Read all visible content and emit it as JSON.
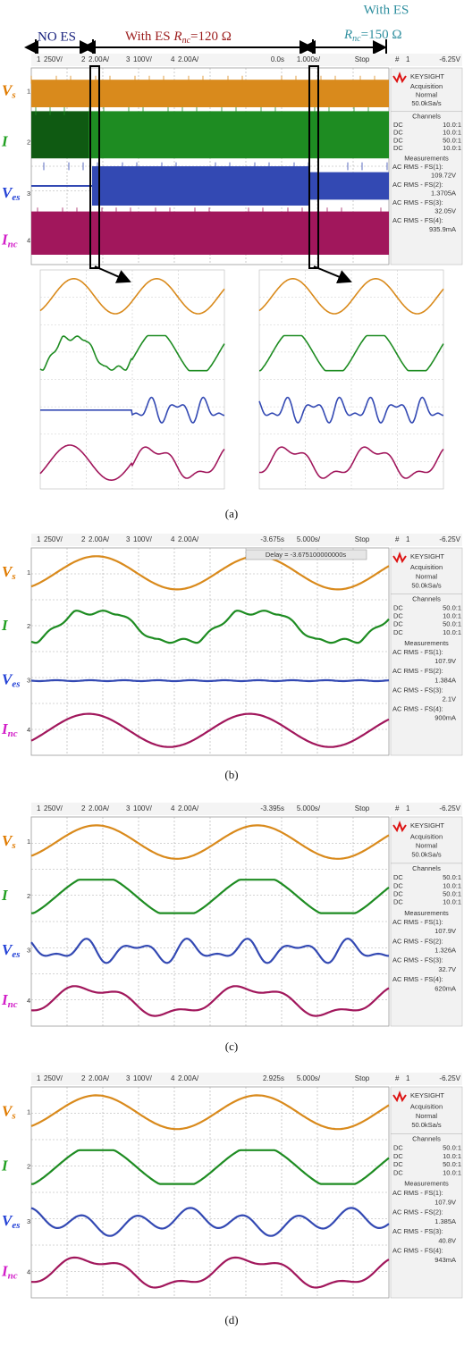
{
  "panel_a": {
    "top_labels": {
      "no_es": "NO ES",
      "with_es_120": {
        "prefix": "With ES ",
        "symbol": "R",
        "subscript": "nc",
        "suffix": "=120 Ω"
      },
      "with_es_150": {
        "line1": "With ES",
        "symbol": "R",
        "subscript": "nc",
        "suffix": "=150 Ω"
      }
    },
    "scope": {
      "channels": [
        {
          "num": "1",
          "scale": "250V/"
        },
        {
          "num": "2",
          "scale": "2.00A/"
        },
        {
          "num": "3",
          "scale": "100V/"
        },
        {
          "num": "4",
          "scale": "2.00A/"
        }
      ],
      "time_offset": "0.0s",
      "time_scale": "1.000s/",
      "status": "Stop",
      "trigger": {
        "mark": "#",
        "ch": "1",
        "level": "-6.25V"
      },
      "side": {
        "logo": "KEYSIGHT",
        "acquisition": "Acquisition",
        "mode": "Normal",
        "rate": "50.0kSa/s",
        "channels_title": "Channels",
        "channel_rows": [
          [
            "DC",
            "10.0:1"
          ],
          [
            "DC",
            "10.0:1"
          ],
          [
            "DC",
            "50.0:1"
          ],
          [
            "DC",
            "10.0:1"
          ]
        ],
        "measurements_title": "Measurements",
        "measurements": [
          {
            "label": "AC RMS - FS(1):",
            "value": "109.72V"
          },
          {
            "label": "AC RMS - FS(2):",
            "value": "1.3705A"
          },
          {
            "label": "AC RMS - FS(3):",
            "value": "32.05V"
          },
          {
            "label": "AC RMS - FS(4):",
            "value": "935.9mA"
          }
        ]
      },
      "signal_labels": [
        {
          "symbol": "V",
          "subscript": "s"
        },
        {
          "symbol": "I"
        },
        {
          "symbol": "V",
          "subscript": "es"
        },
        {
          "symbol": "I",
          "subscript": "nc"
        }
      ]
    },
    "caption": "(a)"
  },
  "panel_b": {
    "scope": {
      "channels": [
        {
          "num": "1",
          "scale": "250V/"
        },
        {
          "num": "2",
          "scale": "2.00A/"
        },
        {
          "num": "3",
          "scale": "100V/"
        },
        {
          "num": "4",
          "scale": "2.00A/"
        }
      ],
      "time_offset": "-3.675s",
      "time_scale": "5.000s/",
      "status": "Stop",
      "delay": "Delay = -3.675100000000s",
      "trigger": {
        "mark": "#",
        "ch": "1",
        "level": "-6.25V"
      },
      "side": {
        "logo": "KEYSIGHT",
        "acquisition": "Acquisition",
        "mode": "Normal",
        "rate": "50.0kSa/s",
        "channels_title": "Channels",
        "channel_rows": [
          [
            "DC",
            "50.0:1"
          ],
          [
            "DC",
            "10.0:1"
          ],
          [
            "DC",
            "50.0:1"
          ],
          [
            "DC",
            "10.0:1"
          ]
        ],
        "measurements_title": "Measurements",
        "measurements": [
          {
            "label": "AC RMS - FS(1):",
            "value": "107.9V"
          },
          {
            "label": "AC RMS - FS(2):",
            "value": "1.384A"
          },
          {
            "label": "AC RMS - FS(3):",
            "value": "2.1V"
          },
          {
            "label": "AC RMS - FS(4):",
            "value": "900mA"
          }
        ]
      },
      "signal_labels": [
        {
          "symbol": "V",
          "subscript": "s"
        },
        {
          "symbol": "I"
        },
        {
          "symbol": "V",
          "subscript": "es"
        },
        {
          "symbol": "I",
          "subscript": "nc"
        }
      ]
    },
    "caption": "(b)"
  },
  "panel_c": {
    "scope": {
      "channels": [
        {
          "num": "1",
          "scale": "250V/"
        },
        {
          "num": "2",
          "scale": "2.00A/"
        },
        {
          "num": "3",
          "scale": "100V/"
        },
        {
          "num": "4",
          "scale": "2.00A/"
        }
      ],
      "time_offset": "-3.395s",
      "time_scale": "5.000s/",
      "status": "Stop",
      "trigger": {
        "mark": "#",
        "ch": "1",
        "level": "-6.25V"
      },
      "side": {
        "logo": "KEYSIGHT",
        "acquisition": "Acquisition",
        "mode": "Normal",
        "rate": "50.0kSa/s",
        "channels_title": "Channels",
        "channel_rows": [
          [
            "DC",
            "50.0:1"
          ],
          [
            "DC",
            "10.0:1"
          ],
          [
            "DC",
            "50.0:1"
          ],
          [
            "DC",
            "10.0:1"
          ]
        ],
        "measurements_title": "Measurements",
        "measurements": [
          {
            "label": "AC RMS - FS(1):",
            "value": "107.9V"
          },
          {
            "label": "AC RMS - FS(2):",
            "value": "1.326A"
          },
          {
            "label": "AC RMS - FS(3):",
            "value": "32.7V"
          },
          {
            "label": "AC RMS - FS(4):",
            "value": "620mA"
          }
        ]
      },
      "signal_labels": [
        {
          "symbol": "V",
          "subscript": "s"
        },
        {
          "symbol": "I"
        },
        {
          "symbol": "V",
          "subscript": "es"
        },
        {
          "symbol": "I",
          "subscript": "nc"
        }
      ]
    },
    "caption": "(c)"
  },
  "panel_d": {
    "scope": {
      "channels": [
        {
          "num": "1",
          "scale": "250V/"
        },
        {
          "num": "2",
          "scale": "2.00A/"
        },
        {
          "num": "3",
          "scale": "100V/"
        },
        {
          "num": "4",
          "scale": "2.00A/"
        }
      ],
      "time_offset": "2.925s",
      "time_scale": "5.000s/",
      "status": "Stop",
      "trigger": {
        "mark": "#",
        "ch": "1",
        "level": "-6.25V"
      },
      "side": {
        "logo": "KEYSIGHT",
        "acquisition": "Acquisition",
        "mode": "Normal",
        "rate": "50.0kSa/s",
        "channels_title": "Channels",
        "channel_rows": [
          [
            "DC",
            "50.0:1"
          ],
          [
            "DC",
            "10.0:1"
          ],
          [
            "DC",
            "50.0:1"
          ],
          [
            "DC",
            "10.0:1"
          ]
        ],
        "measurements_title": "Measurements",
        "measurements": [
          {
            "label": "AC RMS - FS(1):",
            "value": "107.9V"
          },
          {
            "label": "AC RMS - FS(2):",
            "value": "1.385A"
          },
          {
            "label": "AC RMS - FS(3):",
            "value": "40.8V"
          },
          {
            "label": "AC RMS - FS(4):",
            "value": "943mA"
          }
        ]
      },
      "signal_labels": [
        {
          "symbol": "V",
          "subscript": "s"
        },
        {
          "symbol": "I"
        },
        {
          "symbol": "V",
          "subscript": "es"
        },
        {
          "symbol": "I",
          "subscript": "nc"
        }
      ]
    },
    "caption": "(d)"
  }
}
